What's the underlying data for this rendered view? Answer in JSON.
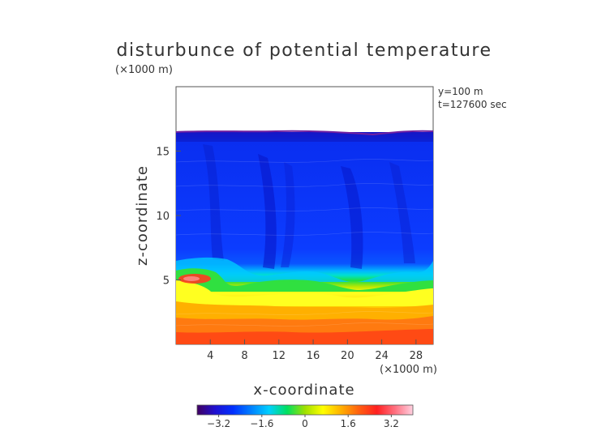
{
  "chart_data": {
    "type": "heatmap",
    "title": "disturbunce of potential temperature",
    "xlabel": "x-coordinate",
    "ylabel": "z-coordinate",
    "x_unit": "(×1000 m)",
    "z_unit": "(×1000 m)",
    "annotations": [
      "y=100 m",
      "t=127600 sec"
    ],
    "xlim": [
      0,
      30
    ],
    "ylim": [
      0,
      20
    ],
    "x_ticks": [
      "4",
      "8",
      "12",
      "16",
      "20",
      "24",
      "28"
    ],
    "z_ticks": [
      "5",
      "10",
      "15"
    ],
    "colorbar": {
      "range": [
        -4,
        4
      ],
      "ticks": [
        "−3.2",
        "−1.6",
        "0",
        "1.6",
        "3.2"
      ],
      "colors": [
        "#400060",
        "#2010d0",
        "#0030ff",
        "#0080ff",
        "#00d0ff",
        "#00e060",
        "#a0e000",
        "#ffff00",
        "#ffb000",
        "#ff6010",
        "#ff2020",
        "#ff7080",
        "#ffd0e0"
      ]
    },
    "field_description": {
      "domain_top_z": 16.5,
      "interface_z_approx": 5.5,
      "upper_layer_value_approx": -2.5,
      "lower_layer_value_approx": 2.8
    }
  }
}
